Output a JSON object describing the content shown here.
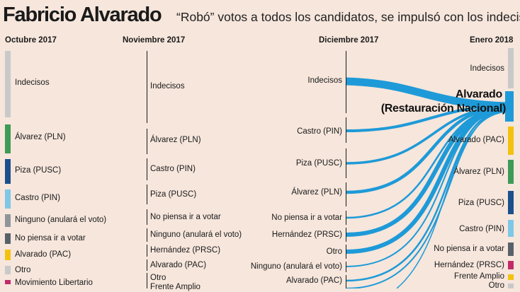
{
  "header": {
    "title": "Fabricio Alvarado",
    "subtitle": "“Robó” votos a todos los candidatos, se impulsó con los indecisos."
  },
  "columns": {
    "oct": "Octubre 2017",
    "nov": "Noviembre 2017",
    "dic": "Diciembre 2017",
    "ene": "Enero 2018"
  },
  "octubre": [
    {
      "label": "Indecisos",
      "color": "#c9c9c9"
    },
    {
      "label": "Álvarez (PLN)",
      "color": "#3e9a57"
    },
    {
      "label": "Piza (PUSC)",
      "color": "#1d4f8c"
    },
    {
      "label": "Castro (PIN)",
      "color": "#7fc7e6"
    },
    {
      "label": "Ninguno (anulará el voto)",
      "color": "#8f969a"
    },
    {
      "label": "No piensa ir a votar",
      "color": "#58616a"
    },
    {
      "label": "Alvarado (PAC)",
      "color": "#f3c211"
    },
    {
      "label": "Otro",
      "color": "#c9c9c9"
    },
    {
      "label": "Movimiento Libertario",
      "color": "#c22b6b"
    }
  ],
  "noviembre": [
    {
      "label": "Indecisos"
    },
    {
      "label": "Álvarez (PLN)"
    },
    {
      "label": "Castro (PIN)"
    },
    {
      "label": "Piza (PUSC)"
    },
    {
      "label": "No piensa ir a votar"
    },
    {
      "label": "Ninguno (anulará el voto)"
    },
    {
      "label": "Hernández (PRSC)"
    },
    {
      "label": "Alvarado (PAC)"
    },
    {
      "label": "Otro"
    },
    {
      "label": "Frente Amplio"
    }
  ],
  "diciembre": [
    {
      "label": "Indecisos"
    },
    {
      "label": "Castro (PIN)"
    },
    {
      "label": "Piza (PUSC)"
    },
    {
      "label": "Álvarez (PLN)"
    },
    {
      "label": "No piensa ir a votar"
    },
    {
      "label": "Hernández (PRSC)"
    },
    {
      "label": "Otro"
    },
    {
      "label": "Ninguno (anulará el voto)"
    },
    {
      "label": "Alvarado (PAC)"
    }
  ],
  "enero": {
    "winner_line1": "Alvarado",
    "winner_line2": "(Restauración Nacional)",
    "winner_color": "#1e9ad8",
    "items": [
      {
        "label": "Indecisos",
        "color": "#c9c9c9"
      },
      {
        "label": "Alvarado (PAC)",
        "color": "#f3c211"
      },
      {
        "label": "Álvarez (PLN)",
        "color": "#3e9a57"
      },
      {
        "label": "Piza (PUSC)",
        "color": "#1d4f8c"
      },
      {
        "label": "Castro (PIN)",
        "color": "#7fc7e6"
      },
      {
        "label": "No piensa ir a votar",
        "color": "#58616a"
      },
      {
        "label": "Hernández (PRSC)",
        "color": "#c22b6b"
      },
      {
        "label": "Frente Amplio",
        "color": "#f3c211"
      },
      {
        "label": "Otro",
        "color": "#c9c9c9"
      }
    ]
  },
  "flow_color": "#1e9ad8"
}
